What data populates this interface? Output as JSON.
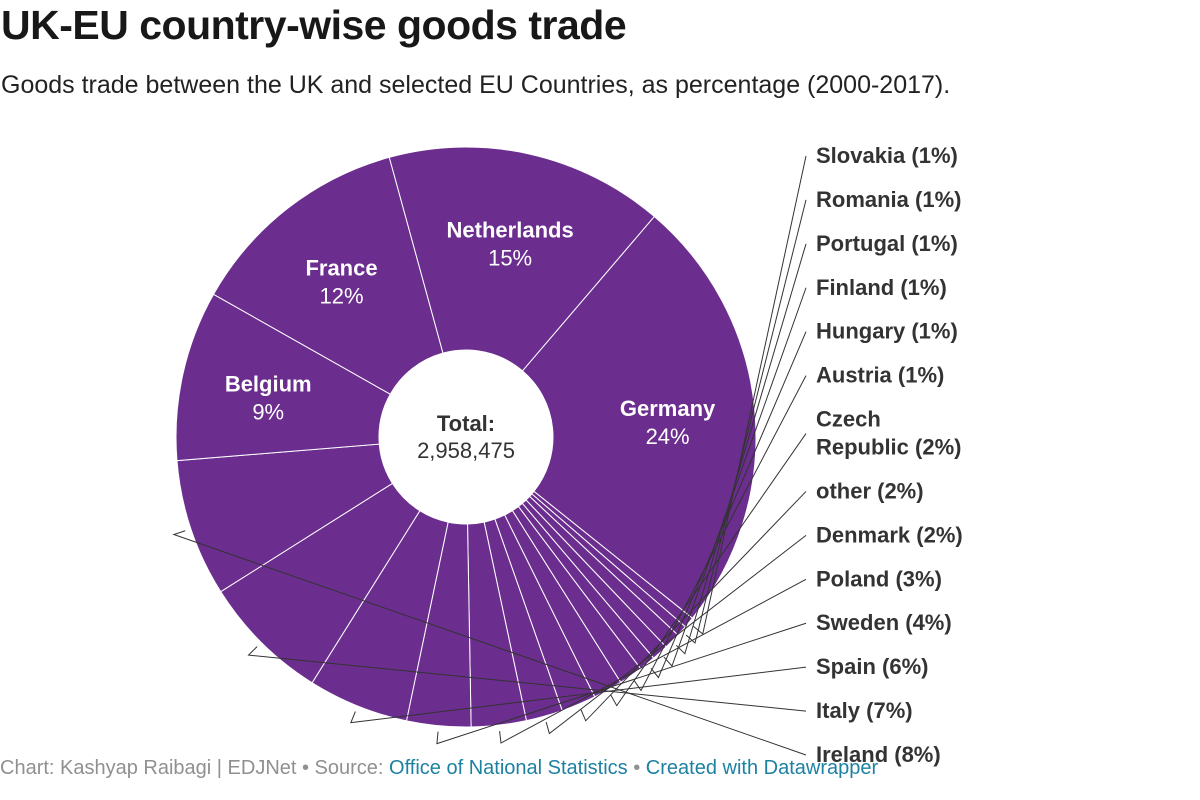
{
  "header": {
    "title": "UK-EU country-wise goods trade",
    "subtitle": "Goods trade between the UK and selected EU Countries, as percentage (2000-2017)."
  },
  "center": {
    "label": "Total:",
    "value": "2,958,475"
  },
  "footer": {
    "credit": "Chart: Kashyap Raibagi | EDJNet • Source: ",
    "source_link": "Office of National Statistics",
    "separator": " • ",
    "tool_link": "Created with Datawrapper"
  },
  "chart_data": {
    "type": "pie",
    "style": "donut",
    "color": "#6b2d8e",
    "slices": [
      {
        "label": "Germany",
        "value": 24,
        "pct_label": "24%"
      },
      {
        "label": "Slovakia",
        "value": 0.6,
        "pct_label": "1%"
      },
      {
        "label": "Romania",
        "value": 0.6,
        "pct_label": "1%"
      },
      {
        "label": "Portugal",
        "value": 0.9,
        "pct_label": "1%"
      },
      {
        "label": "Finland",
        "value": 0.9,
        "pct_label": "1%"
      },
      {
        "label": "Hungary",
        "value": 0.9,
        "pct_label": "1%"
      },
      {
        "label": "Austria",
        "value": 1.3,
        "pct_label": "1%"
      },
      {
        "label": "Czech Republic",
        "value": 1.6,
        "pct_label": "2%"
      },
      {
        "label": "other",
        "value": 1.9,
        "pct_label": "2%"
      },
      {
        "label": "Denmark",
        "value": 2.0,
        "pct_label": "2%"
      },
      {
        "label": "Poland",
        "value": 3.0,
        "pct_label": "3%"
      },
      {
        "label": "Sweden",
        "value": 3.5,
        "pct_label": "4%"
      },
      {
        "label": "Spain",
        "value": 5.5,
        "pct_label": "6%"
      },
      {
        "label": "Italy",
        "value": 7.0,
        "pct_label": "7%"
      },
      {
        "label": "Ireland",
        "value": 7.5,
        "pct_label": "8%"
      },
      {
        "label": "Belgium",
        "value": 9.3,
        "pct_label": "9%"
      },
      {
        "label": "France",
        "value": 12.3,
        "pct_label": "12%"
      },
      {
        "label": "Netherlands",
        "value": 15.2,
        "pct_label": "15%"
      }
    ],
    "inside_labels": [
      "Germany",
      "Netherlands",
      "France",
      "Belgium"
    ]
  }
}
